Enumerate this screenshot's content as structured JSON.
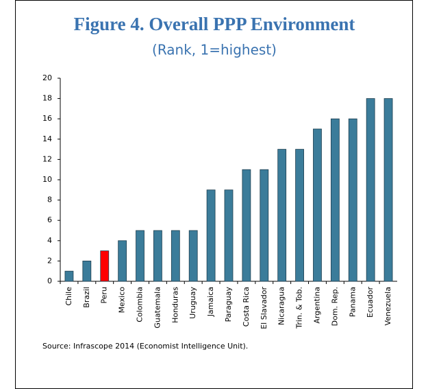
{
  "chart_data": {
    "type": "bar",
    "title": "Figure 4. Overall PPP Environment",
    "subtitle": "(Rank, 1=highest)",
    "source": "Source: Infrascope 2014 (Economist Intelligence Unit).",
    "categories": [
      "Chile",
      "Brazil",
      "Peru",
      "Mexico",
      "Colombia",
      "Guatemala",
      "Honduras",
      "Uruguay",
      "Jamaica",
      "Paraguay",
      "Costa Rica",
      "El Slavador",
      "Nicaragua",
      "Trin. & Tob.",
      "Argentina",
      "Dom. Rep.",
      "Panama",
      "Ecuador",
      "Venezuela"
    ],
    "values": [
      1,
      2,
      3,
      4,
      5,
      5,
      5,
      5,
      9,
      9,
      11,
      11,
      13,
      13,
      15,
      16,
      16,
      18,
      18
    ],
    "colors": [
      "#3b7c9a",
      "#3b7c9a",
      "#ff0000",
      "#3b7c9a",
      "#3b7c9a",
      "#3b7c9a",
      "#3b7c9a",
      "#3b7c9a",
      "#3b7c9a",
      "#3b7c9a",
      "#3b7c9a",
      "#3b7c9a",
      "#3b7c9a",
      "#3b7c9a",
      "#3b7c9a",
      "#3b7c9a",
      "#3b7c9a",
      "#3b7c9a",
      "#3b7c9a"
    ],
    "ylim": [
      0,
      20
    ],
    "yticks": [
      0,
      2,
      4,
      6,
      8,
      10,
      12,
      14,
      16,
      18,
      20
    ],
    "grid": false
  }
}
